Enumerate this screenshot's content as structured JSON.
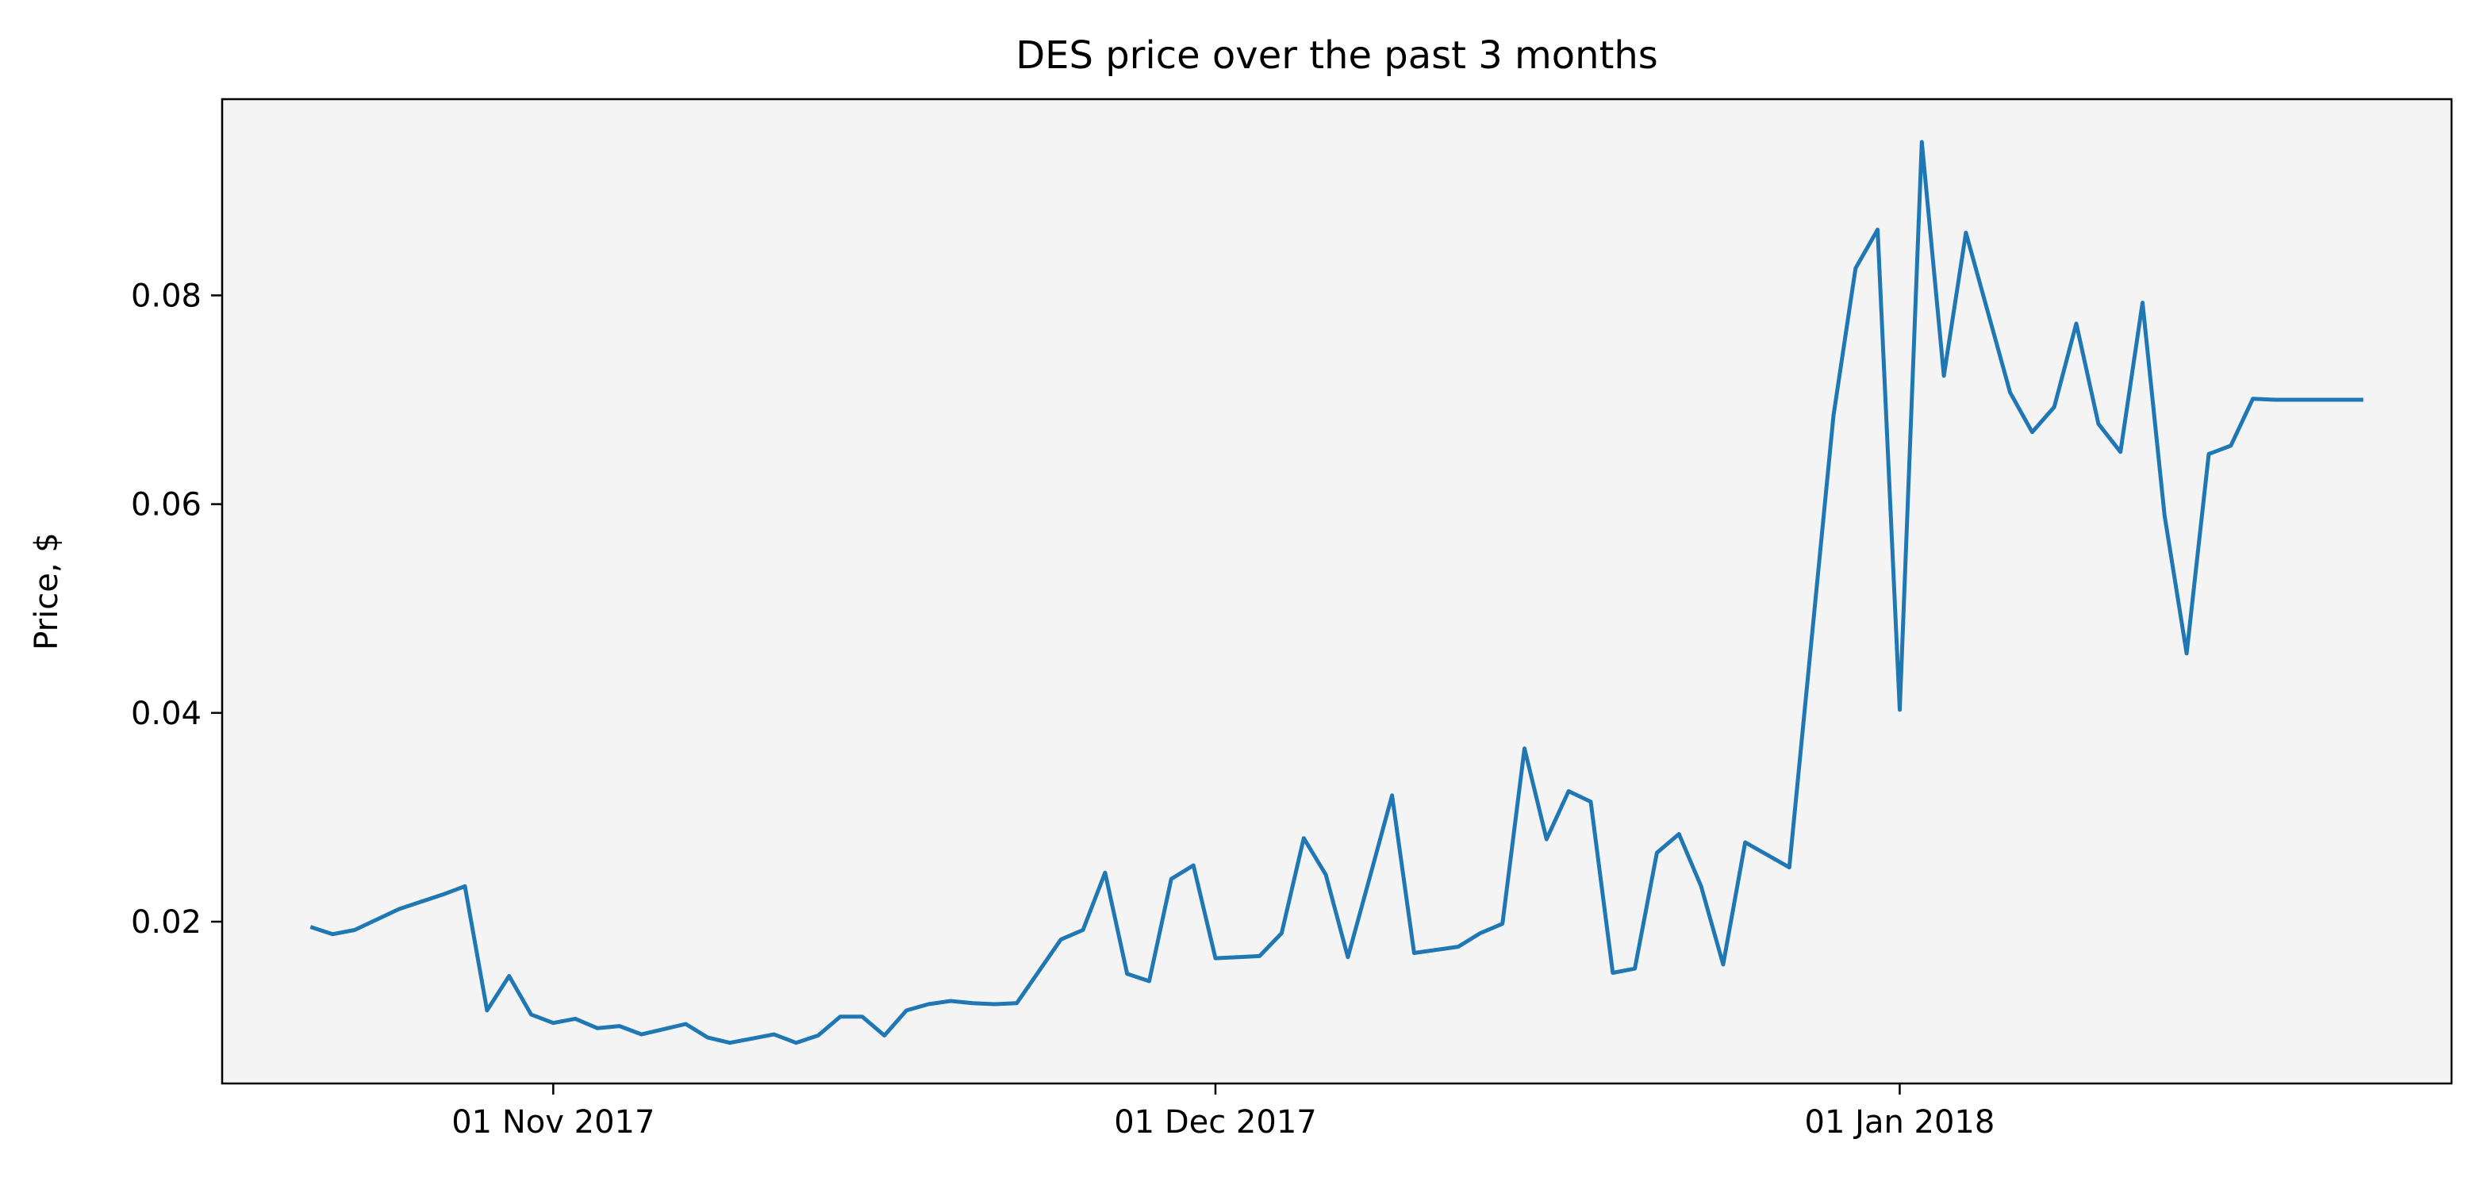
{
  "chart_data": {
    "type": "line",
    "title": "DES price over the past 3 months",
    "xlabel": "",
    "ylabel": "Price, $",
    "x_axis_type": "date",
    "xlim": [
      "2017-10-17",
      "2018-01-26"
    ],
    "ylim": [
      0.0045,
      0.0988
    ],
    "x_ticks": [
      {
        "value": "2017-11-01",
        "label": "01 Nov 2017"
      },
      {
        "value": "2017-12-01",
        "label": "01 Dec 2017"
      },
      {
        "value": "2018-01-01",
        "label": "01 Jan 2018"
      }
    ],
    "y_ticks": [
      {
        "value": 0.02,
        "label": "0.02"
      },
      {
        "value": 0.04,
        "label": "0.04"
      },
      {
        "value": 0.06,
        "label": "0.06"
      },
      {
        "value": 0.08,
        "label": "0.08"
      }
    ],
    "grid": false,
    "legend": "none",
    "background_color": "#f4f4f4",
    "line_color": "#1f77b4",
    "series": [
      {
        "x": [
          "2017-10-21",
          "2017-10-22",
          "2017-10-23",
          "2017-10-24",
          "2017-10-25",
          "2017-10-27",
          "2017-10-28",
          "2017-10-29",
          "2017-10-30",
          "2017-10-31",
          "2017-11-01",
          "2017-11-02",
          "2017-11-03",
          "2017-11-04",
          "2017-11-05",
          "2017-11-06",
          "2017-11-07",
          "2017-11-08",
          "2017-11-09",
          "2017-11-10",
          "2017-11-11",
          "2017-11-12",
          "2017-11-13",
          "2017-11-14",
          "2017-11-15",
          "2017-11-16",
          "2017-11-17",
          "2017-11-18",
          "2017-11-19",
          "2017-11-20",
          "2017-11-21",
          "2017-11-22",
          "2017-11-24",
          "2017-11-25",
          "2017-11-26",
          "2017-11-27",
          "2017-11-28",
          "2017-11-29",
          "2017-11-30",
          "2017-12-01",
          "2017-12-02",
          "2017-12-03",
          "2017-12-04",
          "2017-12-05",
          "2017-12-06",
          "2017-12-07",
          "2017-12-08",
          "2017-12-09",
          "2017-12-10",
          "2017-12-12",
          "2017-12-13",
          "2017-12-14",
          "2017-12-15",
          "2017-12-16",
          "2017-12-17",
          "2017-12-18",
          "2017-12-19",
          "2017-12-20",
          "2017-12-21",
          "2017-12-22",
          "2017-12-23",
          "2017-12-24",
          "2017-12-25",
          "2017-12-27",
          "2017-12-28",
          "2017-12-29",
          "2017-12-30",
          "2017-12-31",
          "2018-01-01",
          "2018-01-02",
          "2018-01-03",
          "2018-01-04",
          "2018-01-06",
          "2018-01-07",
          "2018-01-08",
          "2018-01-09",
          "2018-01-10",
          "2018-01-11",
          "2018-01-12",
          "2018-01-13",
          "2018-01-14",
          "2018-01-15",
          "2018-01-16",
          "2018-01-17",
          "2018-01-18",
          "2018-01-19",
          "2018-01-20",
          "2018-01-21",
          "2018-01-22"
        ],
        "values": [
          0.0195,
          0.0188,
          0.0192,
          0.0202,
          0.0212,
          0.0226,
          0.0234,
          0.0115,
          0.0148,
          0.0111,
          0.0103,
          0.0107,
          0.0098,
          0.01,
          0.0092,
          0.0097,
          0.0102,
          0.0089,
          0.0084,
          0.0088,
          0.0092,
          0.0084,
          0.0091,
          0.0109,
          0.0109,
          0.0091,
          0.0115,
          0.0121,
          0.0124,
          0.0122,
          0.0121,
          0.0122,
          0.0183,
          0.0192,
          0.0247,
          0.015,
          0.0143,
          0.0241,
          0.0254,
          0.0165,
          0.0166,
          0.0167,
          0.0189,
          0.028,
          0.0245,
          0.0166,
          0.0243,
          0.0321,
          0.017,
          0.0176,
          0.0189,
          0.0198,
          0.0366,
          0.0279,
          0.0325,
          0.0315,
          0.0151,
          0.0155,
          0.0266,
          0.0284,
          0.0234,
          0.0159,
          0.0276,
          0.0252,
          0.0469,
          0.0685,
          0.0826,
          0.0863,
          0.0403,
          0.0947,
          0.0723,
          0.086,
          0.0707,
          0.0669,
          0.0693,
          0.0773,
          0.0677,
          0.065,
          0.0793,
          0.0589,
          0.0457,
          0.0648,
          0.0656,
          0.0701,
          0.07,
          0.07,
          0.07,
          0.07,
          0.07
        ]
      }
    ]
  }
}
